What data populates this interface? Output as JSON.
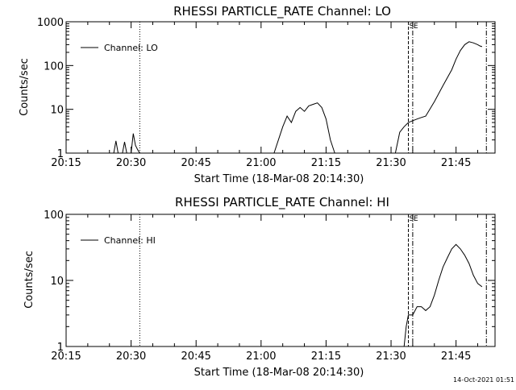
{
  "colors": {
    "background": "#ffffff",
    "foreground": "#000000"
  },
  "footer": {
    "timestamp": "14-Oct-2021 01:51"
  },
  "chart_data": [
    {
      "type": "line",
      "title": "RHESSI PARTICLE_RATE Channel: LO",
      "xlabel": "Start Time (18-Mar-08 20:14:30)",
      "ylabel": "Counts/sec",
      "yscale": "log",
      "ylim": [
        1,
        1000
      ],
      "xlim": [
        "20:15",
        "21:54"
      ],
      "xticks": [
        "20:15",
        "20:30",
        "20:45",
        "21:00",
        "21:15",
        "21:30",
        "21:45"
      ],
      "yticks": [
        "1",
        "10",
        "100",
        "1000"
      ],
      "grid": false,
      "legend": {
        "position": "top-left",
        "entries": [
          "Channel: LO"
        ]
      },
      "series": [
        {
          "name": "Channel: LO",
          "x": [
            "20:15",
            "20:26",
            "20:26.5",
            "20:27",
            "20:27.5",
            "20:28",
            "20:28.5",
            "20:29",
            "20:30",
            "20:30.5",
            "20:31",
            "20:31.5",
            "20:32",
            "21:03",
            "21:05",
            "21:06",
            "21:07",
            "21:08",
            "21:09",
            "21:10",
            "21:11",
            "21:12",
            "21:13",
            "21:14",
            "21:15",
            "21:16",
            "21:17",
            "21:31",
            "21:32",
            "21:33",
            "21:34",
            "21:35",
            "21:36",
            "21:37",
            "21:38",
            "21:40",
            "21:42",
            "21:44",
            "21:45",
            "21:46",
            "21:47",
            "21:48",
            "21:49",
            "21:50",
            "21:50.5",
            "21:51"
          ],
          "values": [
            1,
            1,
            1.9,
            1,
            1,
            1,
            1.8,
            1,
            1,
            2.8,
            1.5,
            1.2,
            1,
            1,
            4,
            7,
            5,
            9,
            11,
            9,
            12,
            13,
            14,
            11,
            6,
            2,
            1,
            1,
            3,
            4,
            5,
            5.5,
            6,
            6.5,
            7,
            15,
            35,
            80,
            140,
            220,
            300,
            350,
            330,
            300,
            280,
            270
          ]
        }
      ],
      "markers": [
        {
          "x": "20:32",
          "style": "dotted"
        },
        {
          "x": "21:34",
          "style": "dashed",
          "label": "S"
        },
        {
          "x": "21:35",
          "style": "dash-dot",
          "label": "E"
        },
        {
          "x": "21:52",
          "style": "dash-dot"
        }
      ]
    },
    {
      "type": "line",
      "title": "RHESSI PARTICLE_RATE Channel: HI",
      "xlabel": "Start Time (18-Mar-08 20:14:30)",
      "ylabel": "Counts/sec",
      "yscale": "log",
      "ylim": [
        1,
        100
      ],
      "xlim": [
        "20:15",
        "21:54"
      ],
      "xticks": [
        "20:15",
        "20:30",
        "20:45",
        "21:00",
        "21:15",
        "21:30",
        "21:45"
      ],
      "yticks": [
        "1",
        "10",
        "100"
      ],
      "grid": false,
      "legend": {
        "position": "top-left",
        "entries": [
          "Channel: HI"
        ]
      },
      "series": [
        {
          "name": "Channel: HI",
          "x": [
            "21:33",
            "21:33.5",
            "21:34",
            "21:35",
            "21:36",
            "21:37",
            "21:38",
            "21:39",
            "21:40",
            "21:41",
            "21:42",
            "21:43",
            "21:44",
            "21:45",
            "21:46",
            "21:47",
            "21:48",
            "21:49",
            "21:50",
            "21:51"
          ],
          "values": [
            1,
            2,
            3,
            3,
            4,
            4,
            3.5,
            4,
            6,
            10,
            16,
            22,
            30,
            35,
            30,
            24,
            18,
            12,
            9,
            8
          ]
        }
      ],
      "markers": [
        {
          "x": "20:32",
          "style": "dotted"
        },
        {
          "x": "21:34",
          "style": "dashed",
          "label": "S"
        },
        {
          "x": "21:35",
          "style": "dash-dot",
          "label": "E"
        },
        {
          "x": "21:52",
          "style": "dash-dot"
        }
      ]
    }
  ]
}
